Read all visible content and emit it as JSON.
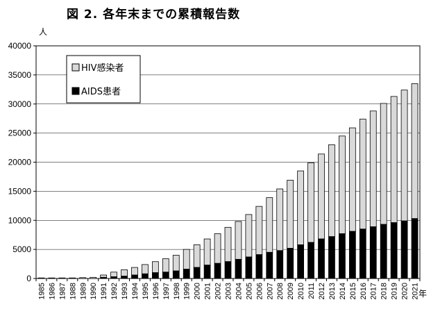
{
  "chart_data": {
    "type": "bar",
    "stacked": true,
    "title": "図 2.  各年末までの累積報告数",
    "ylabel": "人",
    "xlabel": "年",
    "ylim": [
      0,
      40000
    ],
    "yticks": [
      0,
      5000,
      10000,
      15000,
      20000,
      25000,
      30000,
      35000,
      40000
    ],
    "grid": true,
    "legend_position": "top-left",
    "categories": [
      "1985",
      "1986",
      "1987",
      "1988",
      "1989",
      "1990",
      "1991",
      "1992",
      "1993",
      "1994",
      "1995",
      "1996",
      "1997",
      "1998",
      "1999",
      "2000",
      "2001",
      "2002",
      "2003",
      "2004",
      "2005",
      "2006",
      "2007",
      "2008",
      "2009",
      "2010",
      "2011",
      "2012",
      "2013",
      "2014",
      "2015",
      "2016",
      "2017",
      "2018",
      "2019",
      "2020",
      "2021"
    ],
    "series": [
      {
        "name": "AIDS患者",
        "color": "#000000",
        "values": [
          0,
          0,
          0,
          0,
          0,
          0,
          200,
          300,
          400,
          600,
          800,
          1000,
          1100,
          1300,
          1600,
          1900,
          2300,
          2600,
          2900,
          3300,
          3700,
          4100,
          4500,
          4800,
          5200,
          5800,
          6200,
          6800,
          7200,
          7700,
          8100,
          8500,
          8900,
          9300,
          9600,
          9900,
          10300
        ]
      },
      {
        "name": "HIV感染者",
        "color": "#d9d9d9",
        "values": [
          100,
          100,
          100,
          100,
          150,
          200,
          400,
          800,
          1100,
          1300,
          1600,
          1900,
          2300,
          2700,
          3400,
          3900,
          4500,
          5100,
          5900,
          6500,
          7300,
          8300,
          9400,
          10600,
          11700,
          12700,
          13700,
          14600,
          15800,
          16800,
          17800,
          18900,
          19900,
          20800,
          21700,
          22500,
          23200
        ]
      }
    ]
  }
}
